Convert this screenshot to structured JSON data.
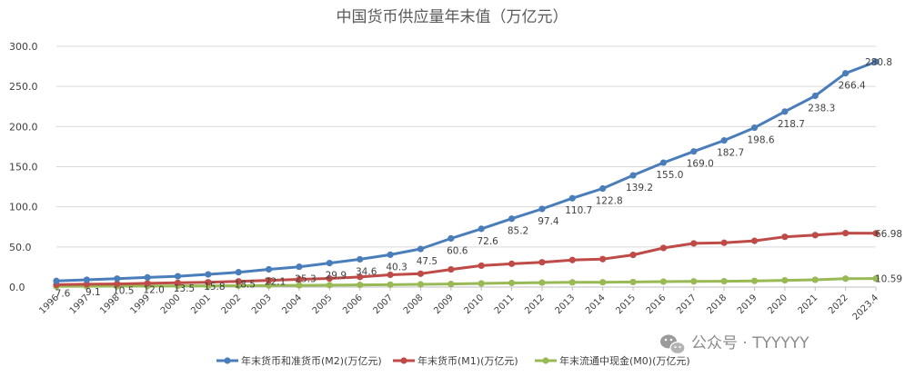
{
  "chart_data": {
    "type": "line",
    "title": "中国货币供应量年末值（万亿元）",
    "categories": [
      "1996",
      "1997",
      "1998",
      "1999",
      "2000",
      "2001",
      "2002",
      "2003",
      "2004",
      "2005",
      "2006",
      "2007",
      "2008",
      "2009",
      "2010",
      "2011",
      "2012",
      "2013",
      "2014",
      "2015",
      "2016",
      "2017",
      "2018",
      "2019",
      "2020",
      "2021",
      "2022",
      "2023.4"
    ],
    "ylim": [
      0,
      300
    ],
    "yticks": [
      "0.0",
      "50.0",
      "100.0",
      "150.0",
      "200.0",
      "250.0",
      "300.0"
    ],
    "series": [
      {
        "name": "年末货币和准货币(M2)(万亿元)",
        "color": "#4a7ebb",
        "values": [
          7.6,
          9.1,
          10.5,
          12.0,
          13.5,
          15.8,
          18.5,
          22.1,
          25.3,
          29.9,
          34.6,
          40.3,
          47.5,
          60.6,
          72.6,
          85.2,
          97.4,
          110.7,
          122.8,
          139.2,
          155.0,
          169.0,
          182.7,
          198.6,
          218.7,
          238.3,
          266.4,
          280.8
        ],
        "labels": [
          "7.6",
          "9.1",
          "10.5",
          "12.0",
          "13.5",
          "15.8",
          "18.5",
          "22.1",
          "25.3",
          "29.9",
          "34.6",
          "40.3",
          "47.5",
          "60.6",
          "72.6",
          "85.2",
          "97.4",
          "110.7",
          "122.8",
          "139.2",
          "155.0",
          "169.0",
          "182.7",
          "198.6",
          "218.7",
          "238.3",
          "266.4",
          "280.8"
        ]
      },
      {
        "name": "年末货币(M1)(万亿元)",
        "color": "#be4b48",
        "values": [
          2.9,
          3.5,
          3.9,
          4.6,
          5.3,
          6.0,
          7.1,
          8.4,
          9.6,
          10.7,
          12.6,
          15.3,
          16.6,
          22.0,
          26.7,
          29.0,
          30.9,
          33.7,
          34.9,
          40.1,
          48.7,
          54.4,
          55.2,
          57.6,
          62.6,
          64.7,
          67.2,
          66.98
        ],
        "labels": [
          "66.98"
        ]
      },
      {
        "name": "年末流通中现金(M0)(万亿元)",
        "color": "#98b954",
        "values": [
          0.9,
          1.0,
          1.1,
          1.3,
          1.5,
          1.6,
          1.7,
          2.0,
          2.2,
          2.4,
          2.7,
          3.0,
          3.4,
          3.8,
          4.5,
          5.1,
          5.5,
          5.9,
          6.0,
          6.3,
          6.8,
          7.1,
          7.3,
          7.7,
          8.4,
          9.1,
          10.5,
          10.59
        ],
        "labels": [
          "10.59"
        ]
      }
    ]
  },
  "watermark": {
    "icon": "wechat-icon",
    "text": "公众号 · TYYYYY"
  }
}
